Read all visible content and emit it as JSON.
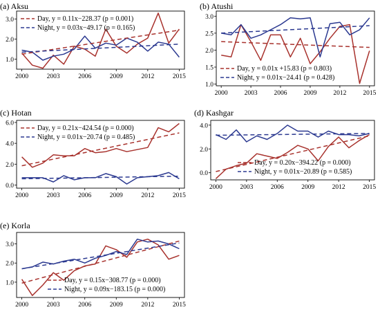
{
  "chart_data": [
    {
      "type": "line",
      "title": "(a) Aksu",
      "x": [
        2000,
        2001,
        2002,
        2003,
        2004,
        2005,
        2006,
        2007,
        2008,
        2009,
        2010,
        2011,
        2012,
        2013,
        2014,
        2015
      ],
      "xticks": [
        2000,
        2003,
        2006,
        2009,
        2012,
        2015
      ],
      "yticks": [
        "1.0",
        "2.0",
        "3.0"
      ],
      "xlim": [
        1999.5,
        2015.5
      ],
      "ylim": [
        0.5,
        3.4
      ],
      "legend_position": "top-left",
      "colors": {
        "day": "#a8322d",
        "night": "#2b3990"
      },
      "series": [
        {
          "key": "day",
          "values": [
            1.3,
            0.7,
            0.55,
            1.2,
            0.75,
            1.65,
            1.5,
            1.15,
            2.5,
            1.65,
            1.3,
            1.75,
            2.05,
            3.3,
            1.8,
            2.5
          ]
        },
        {
          "key": "night",
          "values": [
            1.45,
            1.35,
            0.95,
            1.15,
            1.25,
            1.5,
            2.15,
            1.55,
            1.8,
            1.7,
            2.05,
            1.85,
            1.4,
            1.85,
            1.75,
            1.1
          ]
        }
      ],
      "trends": [
        {
          "key": "day",
          "label": "Day, y = 0.11x−228.37 (p = 0.001)",
          "start": 1.25,
          "end": 2.45
        },
        {
          "key": "night",
          "label": "Night, y = 0.03x−49.17 (p = 0.165)",
          "start": 1.35,
          "end": 1.75
        }
      ]
    },
    {
      "type": "line",
      "title": "(b) Atushi",
      "x": [
        2000,
        2001,
        2002,
        2003,
        2004,
        2005,
        2006,
        2007,
        2008,
        2009,
        2010,
        2011,
        2012,
        2013,
        2014,
        2015
      ],
      "xticks": [
        2000,
        2003,
        2006,
        2009,
        2012,
        2015
      ],
      "yticks": [
        "1.0",
        "1.5",
        "2.0",
        "2.5",
        "3.0"
      ],
      "xlim": [
        1999.5,
        2015.5
      ],
      "ylim": [
        0.95,
        3.15
      ],
      "legend_position": "bottom-left",
      "colors": {
        "day": "#a8322d",
        "night": "#2b3990"
      },
      "series": [
        {
          "key": "day",
          "values": [
            1.85,
            1.8,
            2.75,
            2.25,
            1.7,
            2.45,
            2.45,
            1.8,
            2.35,
            1.6,
            1.95,
            2.35,
            2.7,
            2.75,
            1.02,
            1.98
          ]
        },
        {
          "key": "night",
          "values": [
            2.5,
            2.45,
            2.75,
            2.35,
            2.45,
            2.6,
            2.75,
            2.95,
            2.92,
            2.95,
            1.8,
            2.78,
            2.82,
            2.45,
            2.6,
            2.95
          ]
        }
      ],
      "trends": [
        {
          "key": "day",
          "label": "Day, y = 0.01x +15.83 (p = 0.803)",
          "start": 2.25,
          "end": 2.08
        },
        {
          "key": "night",
          "label": "Night, y = 0.01x−24.41 (p = 0.428)",
          "start": 2.5,
          "end": 2.72
        }
      ]
    },
    {
      "type": "line",
      "title": "(c) Hotan",
      "x": [
        2000,
        2001,
        2002,
        2003,
        2004,
        2005,
        2006,
        2007,
        2008,
        2009,
        2010,
        2011,
        2012,
        2013,
        2014,
        2015
      ],
      "xticks": [
        2000,
        2003,
        2006,
        2009,
        2012,
        2015
      ],
      "yticks": [
        "0.0",
        "2.0",
        "4.0",
        "6.0"
      ],
      "xlim": [
        1999.5,
        2015.5
      ],
      "ylim": [
        -0.3,
        6.2
      ],
      "legend_position": "top-left",
      "colors": {
        "day": "#a8322d",
        "night": "#2b3990"
      },
      "series": [
        {
          "key": "day",
          "values": [
            2.7,
            1.7,
            2.1,
            2.9,
            2.8,
            2.8,
            3.5,
            3.1,
            3.2,
            3.5,
            3.2,
            3.4,
            3.6,
            5.5,
            5.1,
            5.9
          ]
        },
        {
          "key": "night",
          "values": [
            0.7,
            0.7,
            0.7,
            0.3,
            0.9,
            0.5,
            0.7,
            0.7,
            1.1,
            0.8,
            0.1,
            0.7,
            0.8,
            0.9,
            1.2,
            0.6
          ]
        }
      ],
      "trends": [
        {
          "key": "day",
          "label": "Day, y = 0.21x−424.54 (p = 0.000)",
          "start": 1.85,
          "end": 5.0
        },
        {
          "key": "night",
          "label": "Night, y = 0.01x−20.74 (p = 0.485)",
          "start": 0.6,
          "end": 0.85
        }
      ]
    },
    {
      "type": "line",
      "title": "(d) Kashgar",
      "x": [
        2000,
        2001,
        2002,
        2003,
        2004,
        2005,
        2006,
        2007,
        2008,
        2009,
        2010,
        2011,
        2012,
        2013,
        2014,
        2015
      ],
      "xticks": [
        2000,
        2003,
        2006,
        2009,
        2012,
        2015
      ],
      "yticks": [
        "0.0",
        "2.0",
        "4.0"
      ],
      "xlim": [
        1999.5,
        2015.5
      ],
      "ylim": [
        -0.6,
        4.4
      ],
      "legend_position": "bottom-right",
      "colors": {
        "day": "#a8322d",
        "night": "#2b3990"
      },
      "series": [
        {
          "key": "day",
          "values": [
            -0.5,
            0.3,
            0.6,
            0.8,
            1.6,
            1.4,
            1.2,
            1.7,
            2.3,
            2.0,
            1.0,
            2.2,
            3.0,
            2.1,
            2.7,
            3.2
          ]
        },
        {
          "key": "night",
          "values": [
            3.2,
            2.8,
            3.6,
            2.6,
            3.1,
            2.8,
            3.3,
            4.0,
            3.5,
            3.5,
            3.0,
            3.5,
            3.2,
            3.2,
            3.1,
            3.3
          ]
        }
      ],
      "trends": [
        {
          "key": "day",
          "label": "Day, y = 0.20x−394.22 (p = 0.000)",
          "start": 0.1,
          "end": 3.1
        },
        {
          "key": "night",
          "label": "Night, y = 0.01x−20.89 (p = 0.585)",
          "start": 3.15,
          "end": 3.3
        }
      ]
    },
    {
      "type": "line",
      "title": "(e) Korla",
      "x": [
        2000,
        2001,
        2002,
        2003,
        2004,
        2005,
        2006,
        2007,
        2008,
        2009,
        2010,
        2011,
        2012,
        2013,
        2014,
        2015
      ],
      "xticks": [
        2000,
        2003,
        2006,
        2009,
        2012,
        2015
      ],
      "yticks": [
        "1.0",
        "2.0",
        "3.0"
      ],
      "xlim": [
        1999.5,
        2015.5
      ],
      "ylim": [
        0.2,
        3.6
      ],
      "legend_position": "bottom-right",
      "colors": {
        "day": "#a8322d",
        "night": "#2b3990"
      },
      "series": [
        {
          "key": "day",
          "values": [
            1.15,
            0.3,
            0.85,
            1.5,
            1.1,
            1.6,
            1.85,
            1.95,
            2.9,
            2.7,
            2.3,
            3.1,
            3.25,
            2.95,
            2.2,
            2.4
          ]
        },
        {
          "key": "night",
          "values": [
            1.7,
            1.8,
            2.05,
            1.95,
            2.1,
            2.2,
            2.0,
            2.25,
            2.4,
            2.6,
            2.45,
            3.25,
            3.1,
            3.15,
            3.0,
            2.75
          ]
        }
      ],
      "trends": [
        {
          "key": "day",
          "label": "Day, y = 0.15x−308.77 (p = 0.000)",
          "start": 0.95,
          "end": 3.15
        },
        {
          "key": "night",
          "label": "Night, y = 0.09x−183.15 (p = 0.000)",
          "start": 1.7,
          "end": 3.05
        }
      ]
    }
  ]
}
